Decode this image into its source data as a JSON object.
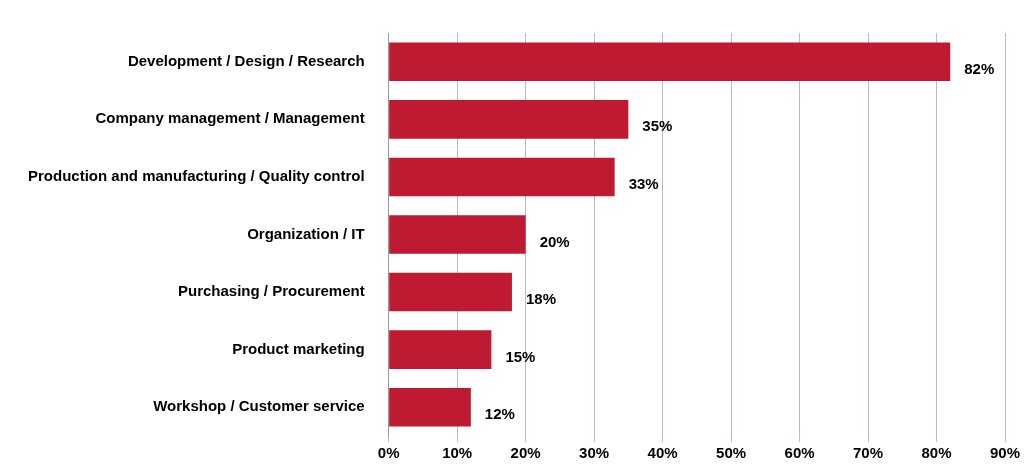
{
  "chart_data": {
    "type": "bar",
    "orientation": "horizontal",
    "categories": [
      "Development / Design / Research",
      "Company management / Management",
      "Production and manufacturing / Quality control",
      "Organization / IT",
      "Purchasing / Procurement",
      "Product marketing",
      "Workshop / Customer service"
    ],
    "values": [
      82,
      35,
      33,
      20,
      18,
      15,
      12
    ],
    "value_labels": [
      "82%",
      "35%",
      "33%",
      "20%",
      "18%",
      "15%",
      "12%"
    ],
    "color": "#be1a32",
    "xlim": [
      0,
      90
    ],
    "xticks": [
      {
        "value": 0,
        "label": "0%"
      },
      {
        "value": 10,
        "label": "10%"
      },
      {
        "value": 20,
        "label": "20%"
      },
      {
        "value": 30,
        "label": "30%"
      },
      {
        "value": 40,
        "label": "40%"
      },
      {
        "value": 50,
        "label": "50%"
      },
      {
        "value": 60,
        "label": "60%"
      },
      {
        "value": 70,
        "label": "70%"
      },
      {
        "value": 80,
        "label": "80%"
      },
      {
        "value": 90,
        "label": "90%"
      }
    ],
    "grid": "x",
    "legend": false
  }
}
